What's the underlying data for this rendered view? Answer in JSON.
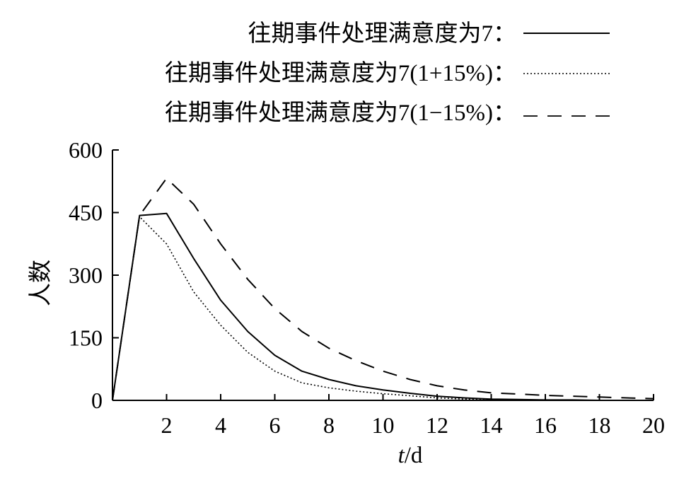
{
  "chart_data": {
    "type": "line",
    "xlabel_italic": "t",
    "xlabel_unit": "/d",
    "ylabel": "人数",
    "xlim": [
      0,
      20
    ],
    "ylim": [
      0,
      600
    ],
    "x_ticks": [
      2,
      4,
      6,
      8,
      10,
      12,
      14,
      16,
      18,
      20
    ],
    "y_ticks": [
      0,
      150,
      300,
      450,
      600
    ],
    "grid": false,
    "legend_position": "top-right",
    "series": [
      {
        "name": "往期事件处理满意度为7：",
        "style": "solid",
        "color": "#000000",
        "x": [
          0,
          1,
          2,
          3,
          4,
          5,
          6,
          7,
          8,
          9,
          10,
          11,
          12,
          13,
          14,
          15,
          16,
          17,
          18,
          19,
          20
        ],
        "y": [
          0,
          443,
          448,
          340,
          240,
          165,
          108,
          70,
          50,
          35,
          25,
          17,
          10,
          6,
          3,
          2,
          1,
          1,
          0,
          0,
          0
        ]
      },
      {
        "name": "往期事件处理满意度为7(1+15%)：",
        "style": "dotted",
        "color": "#000000",
        "x": [
          0,
          1,
          2,
          3,
          4,
          5,
          6,
          7,
          8,
          9,
          10,
          11,
          12,
          13,
          14,
          15,
          16,
          17,
          18,
          19,
          20
        ],
        "y": [
          0,
          440,
          375,
          260,
          180,
          115,
          70,
          42,
          30,
          22,
          16,
          11,
          6,
          3,
          1,
          1,
          0,
          0,
          0,
          0,
          0
        ]
      },
      {
        "name": "往期事件处理满意度为7(1−15%)：",
        "style": "dashed",
        "color": "#000000",
        "x": [
          0,
          1,
          2,
          3,
          4,
          5,
          6,
          7,
          8,
          9,
          10,
          11,
          12,
          13,
          14,
          15,
          16,
          17,
          18,
          19,
          20
        ],
        "y": [
          0,
          443,
          532,
          470,
          375,
          290,
          220,
          165,
          125,
          95,
          70,
          50,
          35,
          25,
          18,
          15,
          12,
          10,
          8,
          6,
          4
        ]
      }
    ]
  }
}
